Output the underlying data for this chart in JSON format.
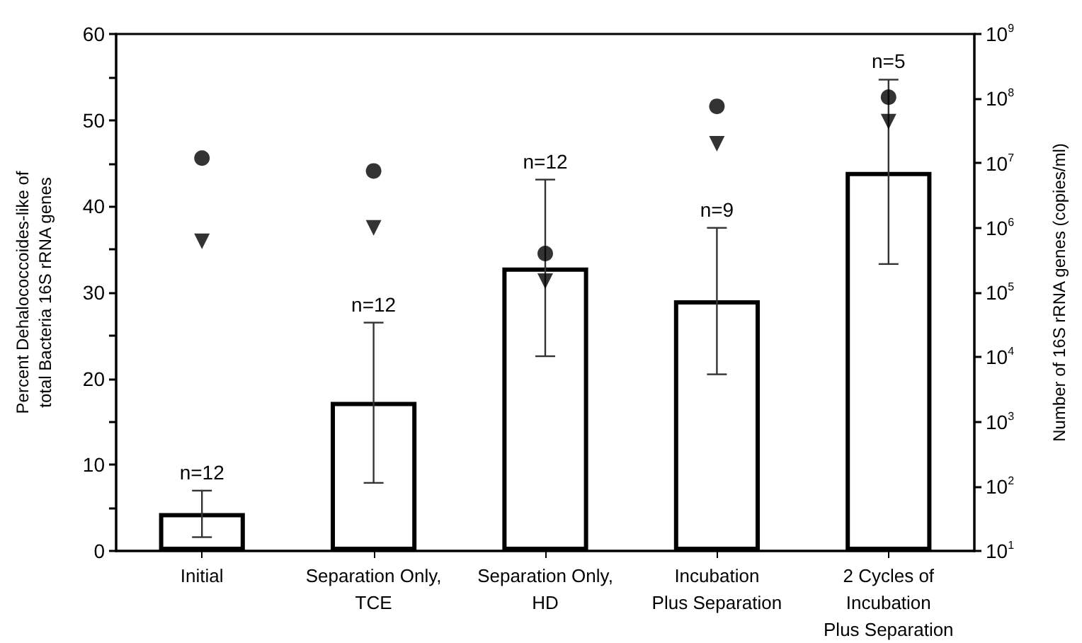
{
  "chart_data": {
    "type": "bar",
    "ylabel": "Percent Dehalococcoides-like of\ntotal Bacteria 16S rRNA genes",
    "y2label": "Number of 16S rRNA genes (copies/ml)",
    "categories": [
      "Initial",
      "Separation Only,\nTCE",
      "Separation Only,\nHD",
      "Incubation\nPlus Separation",
      "2 Cycles of\nIncubation\nPlus Separation"
    ],
    "series": [
      {
        "color": "#ffffff",
        "values": [
          4.4,
          17.3,
          32.9,
          29.1,
          44.0
        ],
        "errors": [
          [
            1.6,
            7.0
          ],
          [
            7.9,
            26.5
          ],
          [
            22.6,
            43.1
          ],
          [
            20.5,
            37.5
          ],
          [
            33.3,
            54.7
          ]
        ]
      },
      {
        "type": "scatter",
        "axis": "y2",
        "marker": "circle",
        "color": "#000000",
        "values": [
          12000000,
          7600000,
          400000,
          76000000,
          105000000
        ]
      },
      {
        "type": "scatter",
        "axis": "y2",
        "marker": "triangle",
        "color": "#000000",
        "values": [
          620000,
          1000000,
          150000,
          20000000,
          44000000
        ]
      }
    ],
    "ylim": [
      0,
      60
    ],
    "yticks": [
      0,
      {
        "value": 5,
        "label": null
      },
      10,
      {
        "value": 15,
        "label": null
      },
      20,
      {
        "value": 25,
        "label": null
      },
      30,
      {
        "value": 35,
        "label": null
      },
      40,
      {
        "value": 45,
        "label": null
      },
      50,
      {
        "value": 55,
        "label": null
      },
      60
    ],
    "y2lim": [
      10,
      1000000000
    ],
    "y2ticks": [
      {
        "value": 10,
        "label": "10$^{1}$"
      },
      {
        "value": 100,
        "label": "10$^{2}$"
      },
      {
        "value": 1000,
        "label": "10$^{3}$"
      },
      {
        "value": 10000,
        "label": "10$^{4}$"
      },
      {
        "value": 100000,
        "label": "10$^{5}$"
      },
      {
        "value": 1000000,
        "label": "10$^{6}$"
      },
      {
        "value": 10000000,
        "label": "10$^{7}$"
      },
      {
        "value": 100000000,
        "label": "10$^{8}$"
      },
      {
        "value": 1000000000,
        "label": "10$^{9}$"
      }
    ],
    "log": "y2",
    "annotations": [
      {
        "text": "n=12",
        "x": "Initial",
        "y": 7.0
      },
      {
        "text": "n=12",
        "x": "Separation Only,\nTCE",
        "y": 26.5
      },
      {
        "text": "n=12",
        "x": "Separation Only,\nHD",
        "y": 43.1
      },
      {
        "text": "n=9",
        "x": "Incubation\nPlus Separation",
        "y": 37.5
      },
      {
        "text": "n=5",
        "x": "2 Cycles of\nIncubation\nPlus Separation",
        "y": 54.7
      }
    ],
    "grid": false
  }
}
